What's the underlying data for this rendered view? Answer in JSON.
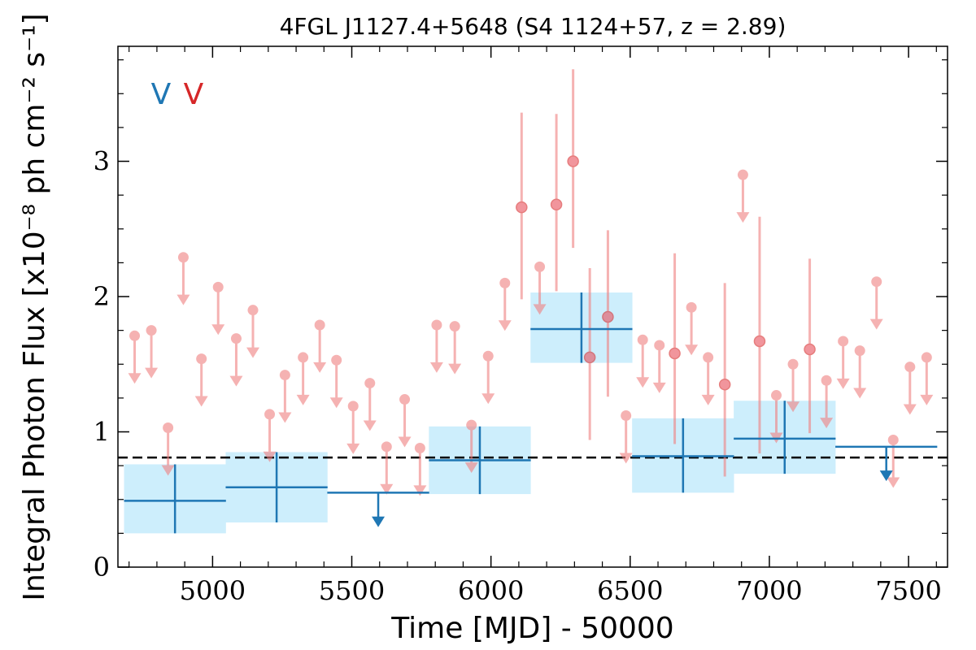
{
  "chart_data": {
    "type": "scatter",
    "title": "4FGL J1127.4+5648 (S4 1124+57, z = 2.89)",
    "xlabel": "Time [MJD] - 50000",
    "ylabel": "Integral Photon Flux [x10⁻⁸ ph cm⁻² s⁻¹]",
    "xlim": [
      4660,
      7640
    ],
    "ylim": [
      0,
      3.85
    ],
    "xticks": [
      "5000",
      "5500",
      "6000",
      "6500",
      "7000",
      "7500"
    ],
    "xtick_values": [
      5000,
      5500,
      6000,
      6500,
      7000,
      7500
    ],
    "yticks": [
      "0",
      "1",
      "2",
      "3"
    ],
    "ytick_values": [
      0,
      1,
      2,
      3
    ],
    "legend": [
      {
        "label": "V",
        "color": "#1f77b4"
      },
      {
        "label": "V",
        "color": "#d62728"
      }
    ],
    "reference_line": {
      "y": 0.81,
      "style": "dashed",
      "color": "#000000"
    },
    "colors": {
      "coarse": "#1f77b4",
      "coarse_band": "#cdeefc",
      "fine": "#f08080"
    },
    "series": [
      {
        "bin": "coarse",
        "points": [
          {
            "x": 4865,
            "xerr": 183,
            "y": 0.49,
            "ylo": 0.25,
            "yhi": 0.76
          },
          {
            "x": 5230,
            "xerr": 183,
            "y": 0.59,
            "ylo": 0.33,
            "yhi": 0.85
          },
          {
            "x": 5960,
            "xerr": 183,
            "y": 0.79,
            "ylo": 0.54,
            "yhi": 1.04
          },
          {
            "x": 6325,
            "xerr": 183,
            "y": 1.76,
            "ylo": 1.51,
            "yhi": 2.03
          },
          {
            "x": 6690,
            "xerr": 183,
            "y": 0.82,
            "ylo": 0.55,
            "yhi": 1.1
          },
          {
            "x": 7055,
            "xerr": 183,
            "y": 0.95,
            "ylo": 0.69,
            "yhi": 1.23
          }
        ],
        "upper_limits": [
          {
            "x": 5595,
            "xerr": 183,
            "y": 0.55
          },
          {
            "x": 7420,
            "xerr": 183,
            "y": 0.89
          }
        ]
      },
      {
        "bin": "fine",
        "points": [
          {
            "x": 6110,
            "y": 2.66,
            "ylo": 1.98,
            "yhi": 3.36
          },
          {
            "x": 6235,
            "y": 2.68,
            "ylo": 2.04,
            "yhi": 3.35
          },
          {
            "x": 6295,
            "y": 3.0,
            "ylo": 2.36,
            "yhi": 3.68
          },
          {
            "x": 6355,
            "y": 1.55,
            "ylo": 0.94,
            "yhi": 2.21
          },
          {
            "x": 6420,
            "y": 1.85,
            "ylo": 1.26,
            "yhi": 2.49
          },
          {
            "x": 6660,
            "y": 1.58,
            "ylo": 0.91,
            "yhi": 2.32
          },
          {
            "x": 6840,
            "y": 1.35,
            "ylo": 0.67,
            "yhi": 2.1
          },
          {
            "x": 6965,
            "y": 1.67,
            "ylo": 0.84,
            "yhi": 2.59
          },
          {
            "x": 7145,
            "y": 1.61,
            "ylo": 0.99,
            "yhi": 2.28
          }
        ],
        "upper_limits": [
          {
            "x": 4720,
            "y": 1.71
          },
          {
            "x": 4780,
            "y": 1.75
          },
          {
            "x": 4840,
            "y": 1.03
          },
          {
            "x": 4895,
            "y": 2.29
          },
          {
            "x": 4960,
            "y": 1.54
          },
          {
            "x": 5020,
            "y": 2.07
          },
          {
            "x": 5085,
            "y": 1.69
          },
          {
            "x": 5145,
            "y": 1.9
          },
          {
            "x": 5205,
            "y": 1.13
          },
          {
            "x": 5260,
            "y": 1.42
          },
          {
            "x": 5325,
            "y": 1.55
          },
          {
            "x": 5385,
            "y": 1.79
          },
          {
            "x": 5445,
            "y": 1.53
          },
          {
            "x": 5505,
            "y": 1.19
          },
          {
            "x": 5565,
            "y": 1.36
          },
          {
            "x": 5625,
            "y": 0.89
          },
          {
            "x": 5690,
            "y": 1.24
          },
          {
            "x": 5745,
            "y": 0.88
          },
          {
            "x": 5805,
            "y": 1.79
          },
          {
            "x": 5870,
            "y": 1.78
          },
          {
            "x": 5930,
            "y": 1.05
          },
          {
            "x": 5990,
            "y": 1.56
          },
          {
            "x": 6050,
            "y": 2.1
          },
          {
            "x": 6175,
            "y": 2.22
          },
          {
            "x": 6485,
            "y": 1.12
          },
          {
            "x": 6545,
            "y": 1.68
          },
          {
            "x": 6605,
            "y": 1.64
          },
          {
            "x": 6720,
            "y": 1.92
          },
          {
            "x": 6780,
            "y": 1.55
          },
          {
            "x": 6905,
            "y": 2.9
          },
          {
            "x": 7025,
            "y": 1.27
          },
          {
            "x": 7085,
            "y": 1.5
          },
          {
            "x": 7205,
            "y": 1.38
          },
          {
            "x": 7265,
            "y": 1.67
          },
          {
            "x": 7325,
            "y": 1.6
          },
          {
            "x": 7385,
            "y": 2.11
          },
          {
            "x": 7445,
            "y": 0.94
          },
          {
            "x": 7505,
            "y": 1.48
          },
          {
            "x": 7565,
            "y": 1.55
          }
        ]
      }
    ]
  }
}
